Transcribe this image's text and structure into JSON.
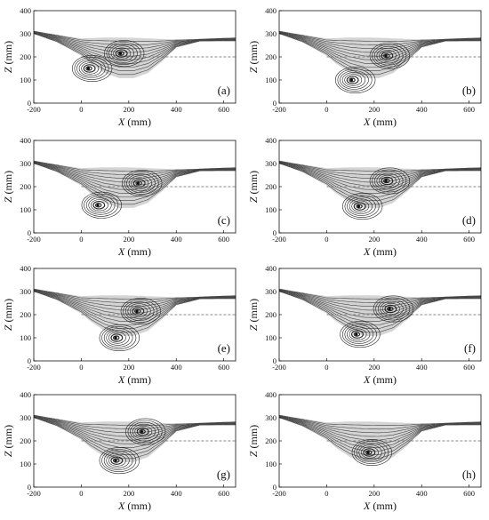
{
  "colors": {
    "fill": "#d4d4d4",
    "stream": "#454545",
    "ref": "#666666",
    "axis": "#111111"
  },
  "chart_data": [
    {
      "type": "streamline",
      "panel": "(a)",
      "xlabel": "X",
      "xunit": "(mm)",
      "ylabel": "Z",
      "yunit": "(mm)",
      "xticks": [
        -200,
        0,
        200,
        400,
        600
      ],
      "yticks": [
        0,
        100,
        200,
        300,
        400
      ],
      "xlim": [
        -200,
        650
      ],
      "ylim": [
        0,
        400
      ],
      "ref_line_z": 200,
      "vortices": [
        {
          "x": 165,
          "z": 215
        },
        {
          "x": 30,
          "z": 150
        }
      ]
    },
    {
      "type": "streamline",
      "panel": "(b)",
      "xlabel": "X",
      "xunit": "(mm)",
      "ylabel": "Z",
      "yunit": "(mm)",
      "xticks": [
        -200,
        0,
        200,
        400,
        600
      ],
      "yticks": [
        0,
        100,
        200,
        300,
        400
      ],
      "xlim": [
        -200,
        650
      ],
      "ylim": [
        0,
        400
      ],
      "ref_line_z": 200,
      "vortices": [
        {
          "x": 250,
          "z": 205
        },
        {
          "x": 105,
          "z": 100
        }
      ]
    },
    {
      "type": "streamline",
      "panel": "(c)",
      "xlabel": "X",
      "xunit": "(mm)",
      "ylabel": "Z",
      "yunit": "(mm)",
      "xticks": [
        -200,
        0,
        200,
        400,
        600
      ],
      "yticks": [
        0,
        100,
        200,
        300,
        400
      ],
      "xlim": [
        -200,
        650
      ],
      "ylim": [
        0,
        400
      ],
      "ref_line_z": 200,
      "vortices": [
        {
          "x": 240,
          "z": 215
        },
        {
          "x": 70,
          "z": 120
        }
      ]
    },
    {
      "type": "streamline",
      "panel": "(d)",
      "xlabel": "X",
      "xunit": "(mm)",
      "ylabel": "Z",
      "yunit": "(mm)",
      "xticks": [
        -200,
        0,
        200,
        400,
        600
      ],
      "yticks": [
        0,
        100,
        200,
        300,
        400
      ],
      "xlim": [
        -200,
        650
      ],
      "ylim": [
        0,
        400
      ],
      "ref_line_z": 200,
      "vortices": [
        {
          "x": 250,
          "z": 225
        },
        {
          "x": 135,
          "z": 115
        }
      ]
    },
    {
      "type": "streamline",
      "panel": "(e)",
      "xlabel": "X",
      "xunit": "(mm)",
      "ylabel": "Z",
      "yunit": "(mm)",
      "xticks": [
        -200,
        0,
        200,
        400,
        600
      ],
      "yticks": [
        0,
        100,
        200,
        300,
        400
      ],
      "xlim": [
        -200,
        650
      ],
      "ylim": [
        0,
        400
      ],
      "ref_line_z": 200,
      "vortices": [
        {
          "x": 235,
          "z": 215
        },
        {
          "x": 145,
          "z": 100
        }
      ]
    },
    {
      "type": "streamline",
      "panel": "(f)",
      "xlabel": "X",
      "xunit": "(mm)",
      "ylabel": "Z",
      "yunit": "(mm)",
      "xticks": [
        -200,
        0,
        200,
        400,
        600
      ],
      "yticks": [
        0,
        100,
        200,
        300,
        400
      ],
      "xlim": [
        -200,
        650
      ],
      "ylim": [
        0,
        400
      ],
      "ref_line_z": 200,
      "vortices": [
        {
          "x": 265,
          "z": 225
        },
        {
          "x": 125,
          "z": 115
        }
      ]
    },
    {
      "type": "streamline",
      "panel": "(g)",
      "xlabel": "X",
      "xunit": "(mm)",
      "ylabel": "Z",
      "yunit": "(mm)",
      "xticks": [
        -200,
        0,
        200,
        400,
        600
      ],
      "yticks": [
        0,
        100,
        200,
        300,
        400
      ],
      "xlim": [
        -200,
        650
      ],
      "ylim": [
        0,
        400
      ],
      "ref_line_z": 200,
      "vortices": [
        {
          "x": 255,
          "z": 240
        },
        {
          "x": 145,
          "z": 115
        }
      ]
    },
    {
      "type": "streamline",
      "panel": "(h)",
      "xlabel": "X",
      "xunit": "(mm)",
      "ylabel": "Z",
      "yunit": "(mm)",
      "xticks": [
        -200,
        0,
        200,
        400,
        600
      ],
      "yticks": [
        0,
        100,
        200,
        300,
        400
      ],
      "xlim": [
        -200,
        650
      ],
      "ylim": [
        0,
        400
      ],
      "ref_line_z": 200,
      "vortices": [
        {
          "x": 175,
          "z": 150
        }
      ]
    }
  ]
}
